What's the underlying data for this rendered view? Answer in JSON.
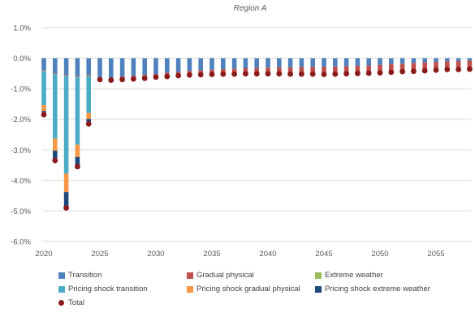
{
  "chart_data": {
    "type": "bar",
    "title": "",
    "subtitle": "Region A",
    "xlabel": "",
    "ylabel": "",
    "ylim": [
      -6.0,
      1.0
    ],
    "yticks": [
      "1.0%",
      "0.0%",
      "-1.0%",
      "-2.0%",
      "-3.0%",
      "-4.0%",
      "-5.0%",
      "-6.0%"
    ],
    "ytick_values": [
      1.0,
      0.0,
      -1.0,
      -2.0,
      -3.0,
      -4.0,
      -5.0,
      -6.0
    ],
    "xticks": [
      "2020",
      "2025",
      "2030",
      "2035",
      "2040",
      "2045",
      "2050",
      "2055"
    ],
    "xtick_values": [
      2020,
      2025,
      2030,
      2035,
      2040,
      2045,
      2050,
      2055
    ],
    "stacked": true,
    "grid": "horizontal",
    "legend_position": "bottom",
    "categories": [
      2020,
      2021,
      2022,
      2023,
      2024,
      2025,
      2026,
      2027,
      2028,
      2029,
      2030,
      2031,
      2032,
      2033,
      2034,
      2035,
      2036,
      2037,
      2038,
      2039,
      2040,
      2041,
      2042,
      2043,
      2044,
      2045,
      2046,
      2047,
      2048,
      2049,
      2050,
      2051,
      2052,
      2053,
      2054,
      2055,
      2056,
      2057,
      2058
    ],
    "series": [
      {
        "name": "Transition",
        "color": "#4f81bd",
        "values": [
          -0.4,
          -0.5,
          -0.55,
          -0.6,
          -0.55,
          -0.65,
          -0.65,
          -0.6,
          -0.58,
          -0.55,
          -0.52,
          -0.48,
          -0.45,
          -0.42,
          -0.4,
          -0.38,
          -0.36,
          -0.35,
          -0.33,
          -0.32,
          -0.31,
          -0.3,
          -0.3,
          -0.29,
          -0.28,
          -0.28,
          -0.27,
          -0.26,
          -0.25,
          -0.24,
          -0.22,
          -0.2,
          -0.18,
          -0.16,
          -0.14,
          -0.12,
          -0.1,
          -0.09,
          -0.08
        ]
      },
      {
        "name": "Gradual physical",
        "color": "#c0504d",
        "values": [
          -0.02,
          -0.02,
          -0.02,
          -0.02,
          -0.03,
          -0.04,
          -0.05,
          -0.06,
          -0.07,
          -0.08,
          -0.09,
          -0.1,
          -0.11,
          -0.12,
          -0.13,
          -0.14,
          -0.15,
          -0.16,
          -0.17,
          -0.18,
          -0.19,
          -0.2,
          -0.21,
          -0.22,
          -0.23,
          -0.24,
          -0.24,
          -0.25,
          -0.25,
          -0.25,
          -0.26,
          -0.26,
          -0.26,
          -0.27,
          -0.27,
          -0.27,
          -0.27,
          -0.28,
          -0.28
        ]
      },
      {
        "name": "Extreme weather",
        "color": "#9bbb59",
        "values": [
          -0.01,
          -0.01,
          -0.01,
          -0.01,
          -0.01,
          -0.01,
          -0.01,
          -0.01,
          -0.01,
          -0.01,
          -0.01,
          -0.01,
          -0.01,
          -0.01,
          -0.01,
          -0.01,
          -0.01,
          -0.01,
          -0.01,
          -0.01,
          -0.01,
          -0.01,
          -0.01,
          -0.01,
          -0.01,
          -0.01,
          -0.01,
          -0.01,
          -0.01,
          -0.01,
          -0.01,
          -0.01,
          -0.01,
          -0.01,
          -0.01,
          -0.01,
          -0.01,
          -0.01,
          -0.01
        ]
      },
      {
        "name": "Pricing shock transition",
        "color": "#4bacc6",
        "values": [
          -1.1,
          -2.1,
          -3.2,
          -2.2,
          -1.2,
          0,
          0,
          0,
          0,
          0,
          0,
          0,
          0,
          0,
          0,
          0,
          0,
          0,
          0,
          0,
          0,
          0,
          0,
          0,
          0,
          0,
          0,
          0,
          0,
          0,
          0,
          0,
          0,
          0,
          0,
          0,
          0,
          0,
          0
        ]
      },
      {
        "name": "Pricing shock gradual physical",
        "color": "#f79646",
        "values": [
          -0.2,
          -0.4,
          -0.6,
          -0.4,
          -0.2,
          0,
          0,
          0,
          0,
          0,
          0,
          0,
          0,
          0,
          0,
          0,
          0,
          0,
          0,
          0,
          0,
          0,
          0,
          0,
          0,
          0,
          0,
          0,
          0,
          0,
          0,
          0,
          0,
          0,
          0,
          0,
          0,
          0,
          0
        ]
      },
      {
        "name": "Pricing shock extreme weather",
        "color": "#1f497d",
        "values": [
          -0.05,
          -0.25,
          -0.5,
          -0.3,
          -0.1,
          0,
          0,
          0,
          0,
          0,
          0,
          0,
          0,
          0,
          0,
          0,
          0,
          0,
          0,
          0,
          0,
          0,
          0,
          0,
          0,
          0,
          0,
          0,
          0,
          0,
          0,
          0,
          0,
          0,
          0,
          0,
          0,
          0,
          0
        ]
      }
    ],
    "total": {
      "name": "Total",
      "color": "#8b1a1a",
      "values": [
        -1.85,
        -3.35,
        -4.9,
        -3.55,
        -2.15,
        -0.7,
        -0.72,
        -0.7,
        -0.68,
        -0.66,
        -0.62,
        -0.6,
        -0.57,
        -0.55,
        -0.54,
        -0.53,
        -0.52,
        -0.52,
        -0.51,
        -0.51,
        -0.51,
        -0.51,
        -0.52,
        -0.52,
        -0.52,
        -0.53,
        -0.52,
        -0.51,
        -0.5,
        -0.49,
        -0.48,
        -0.46,
        -0.44,
        -0.43,
        -0.41,
        -0.39,
        -0.37,
        -0.37,
        -0.36
      ]
    }
  }
}
